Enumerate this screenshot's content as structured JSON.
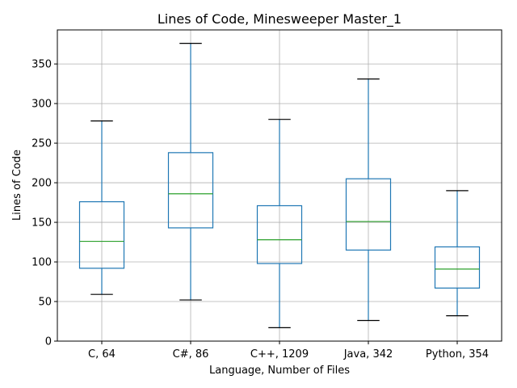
{
  "chart_data": {
    "type": "box",
    "title": "Lines of Code, Minesweeper Master_1",
    "xlabel": "Language, Number of Files",
    "ylabel": "Lines of Code",
    "ylim": [
      0,
      393
    ],
    "yticks": [
      0,
      50,
      100,
      150,
      200,
      250,
      300,
      350
    ],
    "grid": true,
    "categories": [
      "C, 64",
      "C#, 86",
      "C++, 1209",
      "Java, 342",
      "Python, 354"
    ],
    "boxes": [
      {
        "whisker_low": 59,
        "q1": 92,
        "median": 126,
        "q3": 176,
        "whisker_high": 278
      },
      {
        "whisker_low": 52,
        "q1": 143,
        "median": 186,
        "q3": 238,
        "whisker_high": 376
      },
      {
        "whisker_low": 17,
        "q1": 98,
        "median": 128,
        "q3": 171,
        "whisker_high": 280
      },
      {
        "whisker_low": 26,
        "q1": 115,
        "median": 151,
        "q3": 205,
        "whisker_high": 331
      },
      {
        "whisker_low": 32,
        "q1": 67,
        "median": 91,
        "q3": 119,
        "whisker_high": 190
      }
    ],
    "colors": {
      "box": "#1f77b4",
      "median": "#2ca02c",
      "cap": "#000000",
      "grid": "#b0b0b0"
    }
  }
}
